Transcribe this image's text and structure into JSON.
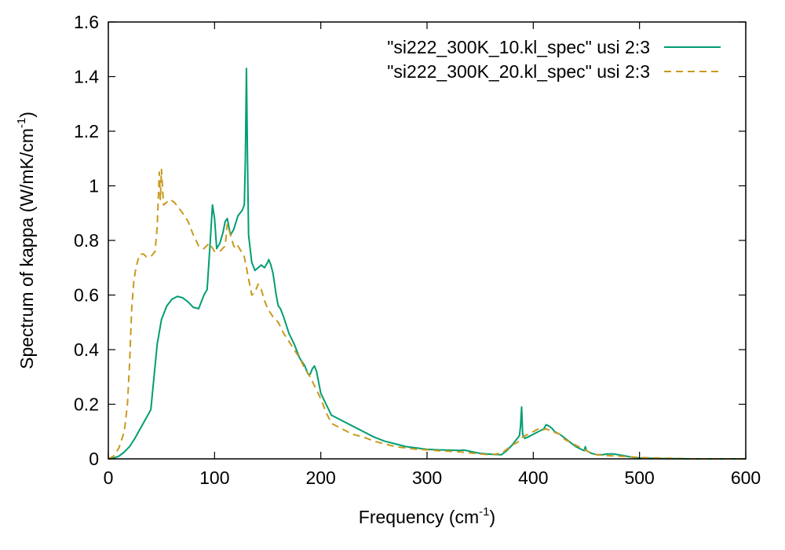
{
  "chart_data": {
    "type": "line",
    "xlabel": "Frequency (cm",
    "xlabel_sup": "-1",
    "xlabel_close": ")",
    "ylabel": "Spectrum of kappa (W/mK/cm",
    "ylabel_sup": "-1",
    "ylabel_close": ")",
    "xlim": [
      0,
      600
    ],
    "ylim": [
      0,
      1.6
    ],
    "xticks": [
      0,
      100,
      200,
      300,
      400,
      500,
      600
    ],
    "yticks": [
      0,
      0.2,
      0.4,
      0.6,
      0.8,
      1,
      1.2,
      1.4,
      1.6
    ],
    "xtick_labels": [
      "0",
      "100",
      "200",
      "300",
      "400",
      "500",
      "600"
    ],
    "ytick_labels": [
      "0",
      "0.2",
      "0.4",
      "0.6",
      "0.8",
      "1",
      "1.2",
      "1.4",
      "1.6"
    ],
    "grid": false,
    "legend_position": "top-right",
    "series": [
      {
        "name": "\"si222_300K_10.kl_spec\" usi 2:3",
        "color": "#009e73",
        "dash": "solid",
        "x": [
          0,
          5,
          10,
          15,
          20,
          25,
          30,
          35,
          40,
          43,
          46,
          50,
          55,
          60,
          65,
          70,
          75,
          80,
          85,
          90,
          93,
          96,
          98,
          100,
          102,
          105,
          108,
          110,
          112,
          115,
          118,
          122,
          126,
          128,
          129,
          130,
          131,
          132,
          135,
          138,
          141,
          144,
          147,
          150,
          151,
          152,
          153,
          155,
          158,
          160,
          162,
          165,
          170,
          175,
          180,
          185,
          188,
          190,
          192,
          194,
          196,
          198,
          200,
          205,
          210,
          220,
          230,
          240,
          250,
          260,
          270,
          280,
          290,
          300,
          310,
          320,
          330,
          335,
          340,
          350,
          360,
          370,
          375,
          380,
          385,
          387,
          388,
          389,
          390,
          392,
          395,
          400,
          405,
          410,
          412,
          415,
          418,
          420,
          425,
          430,
          435,
          440,
          445,
          448,
          449,
          450,
          455,
          460,
          465,
          470,
          475,
          480,
          485,
          490,
          495,
          500,
          510,
          520,
          550,
          600
        ],
        "y": [
          0,
          0.003,
          0.01,
          0.025,
          0.045,
          0.075,
          0.11,
          0.145,
          0.18,
          0.3,
          0.42,
          0.51,
          0.56,
          0.585,
          0.595,
          0.59,
          0.575,
          0.555,
          0.55,
          0.6,
          0.62,
          0.8,
          0.93,
          0.88,
          0.77,
          0.79,
          0.83,
          0.87,
          0.88,
          0.82,
          0.84,
          0.89,
          0.91,
          0.93,
          1.1,
          1.43,
          1.1,
          0.82,
          0.72,
          0.69,
          0.7,
          0.71,
          0.7,
          0.72,
          0.73,
          0.72,
          0.71,
          0.68,
          0.6,
          0.56,
          0.55,
          0.52,
          0.46,
          0.42,
          0.37,
          0.34,
          0.31,
          0.31,
          0.33,
          0.34,
          0.32,
          0.28,
          0.24,
          0.2,
          0.16,
          0.14,
          0.12,
          0.1,
          0.08,
          0.065,
          0.055,
          0.045,
          0.04,
          0.035,
          0.033,
          0.032,
          0.031,
          0.032,
          0.028,
          0.02,
          0.017,
          0.015,
          0.03,
          0.05,
          0.075,
          0.085,
          0.12,
          0.19,
          0.09,
          0.075,
          0.08,
          0.09,
          0.1,
          0.11,
          0.125,
          0.12,
          0.11,
          0.1,
          0.09,
          0.075,
          0.06,
          0.045,
          0.035,
          0.03,
          0.045,
          0.03,
          0.02,
          0.015,
          0.015,
          0.018,
          0.018,
          0.015,
          0.012,
          0.008,
          0.005,
          0.003,
          0.002,
          0.001,
          0,
          0
        ]
      },
      {
        "name": "\"si222_300K_20.kl_spec\" usi 2:3",
        "color": "#c99a1e",
        "dash": "dashed",
        "x": [
          0,
          5,
          10,
          15,
          18,
          20,
          22,
          24,
          26,
          28,
          30,
          33,
          36,
          40,
          44,
          46,
          48,
          49,
          50,
          52,
          55,
          58,
          62,
          66,
          70,
          75,
          80,
          85,
          90,
          95,
          100,
          105,
          110,
          112,
          115,
          118,
          120,
          122,
          125,
          128,
          130,
          132,
          135,
          138,
          141,
          144,
          147,
          150,
          155,
          160,
          165,
          170,
          175,
          180,
          185,
          190,
          195,
          200,
          205,
          210,
          220,
          230,
          240,
          250,
          260,
          270,
          280,
          290,
          300,
          310,
          320,
          330,
          340,
          350,
          360,
          370,
          375,
          380,
          385,
          390,
          395,
          400,
          405,
          408,
          412,
          418,
          425,
          430,
          440,
          450,
          455,
          460,
          470,
          480,
          490,
          500,
          550,
          600
        ],
        "y": [
          0,
          0.01,
          0.04,
          0.1,
          0.2,
          0.35,
          0.55,
          0.65,
          0.7,
          0.73,
          0.75,
          0.75,
          0.74,
          0.74,
          0.76,
          0.85,
          1.05,
          0.95,
          1.06,
          0.93,
          0.94,
          0.95,
          0.94,
          0.92,
          0.9,
          0.87,
          0.82,
          0.78,
          0.77,
          0.79,
          0.76,
          0.76,
          0.78,
          0.86,
          0.82,
          0.78,
          0.77,
          0.78,
          0.76,
          0.74,
          0.7,
          0.66,
          0.6,
          0.61,
          0.64,
          0.62,
          0.58,
          0.55,
          0.52,
          0.5,
          0.46,
          0.43,
          0.4,
          0.37,
          0.33,
          0.3,
          0.26,
          0.22,
          0.17,
          0.13,
          0.11,
          0.09,
          0.08,
          0.065,
          0.055,
          0.045,
          0.04,
          0.035,
          0.033,
          0.03,
          0.028,
          0.026,
          0.022,
          0.018,
          0.015,
          0.02,
          0.035,
          0.05,
          0.06,
          0.08,
          0.09,
          0.1,
          0.11,
          0.105,
          0.11,
          0.1,
          0.09,
          0.07,
          0.05,
          0.03,
          0.02,
          0.015,
          0.012,
          0.01,
          0.008,
          0.005,
          0,
          0
        ]
      }
    ]
  }
}
